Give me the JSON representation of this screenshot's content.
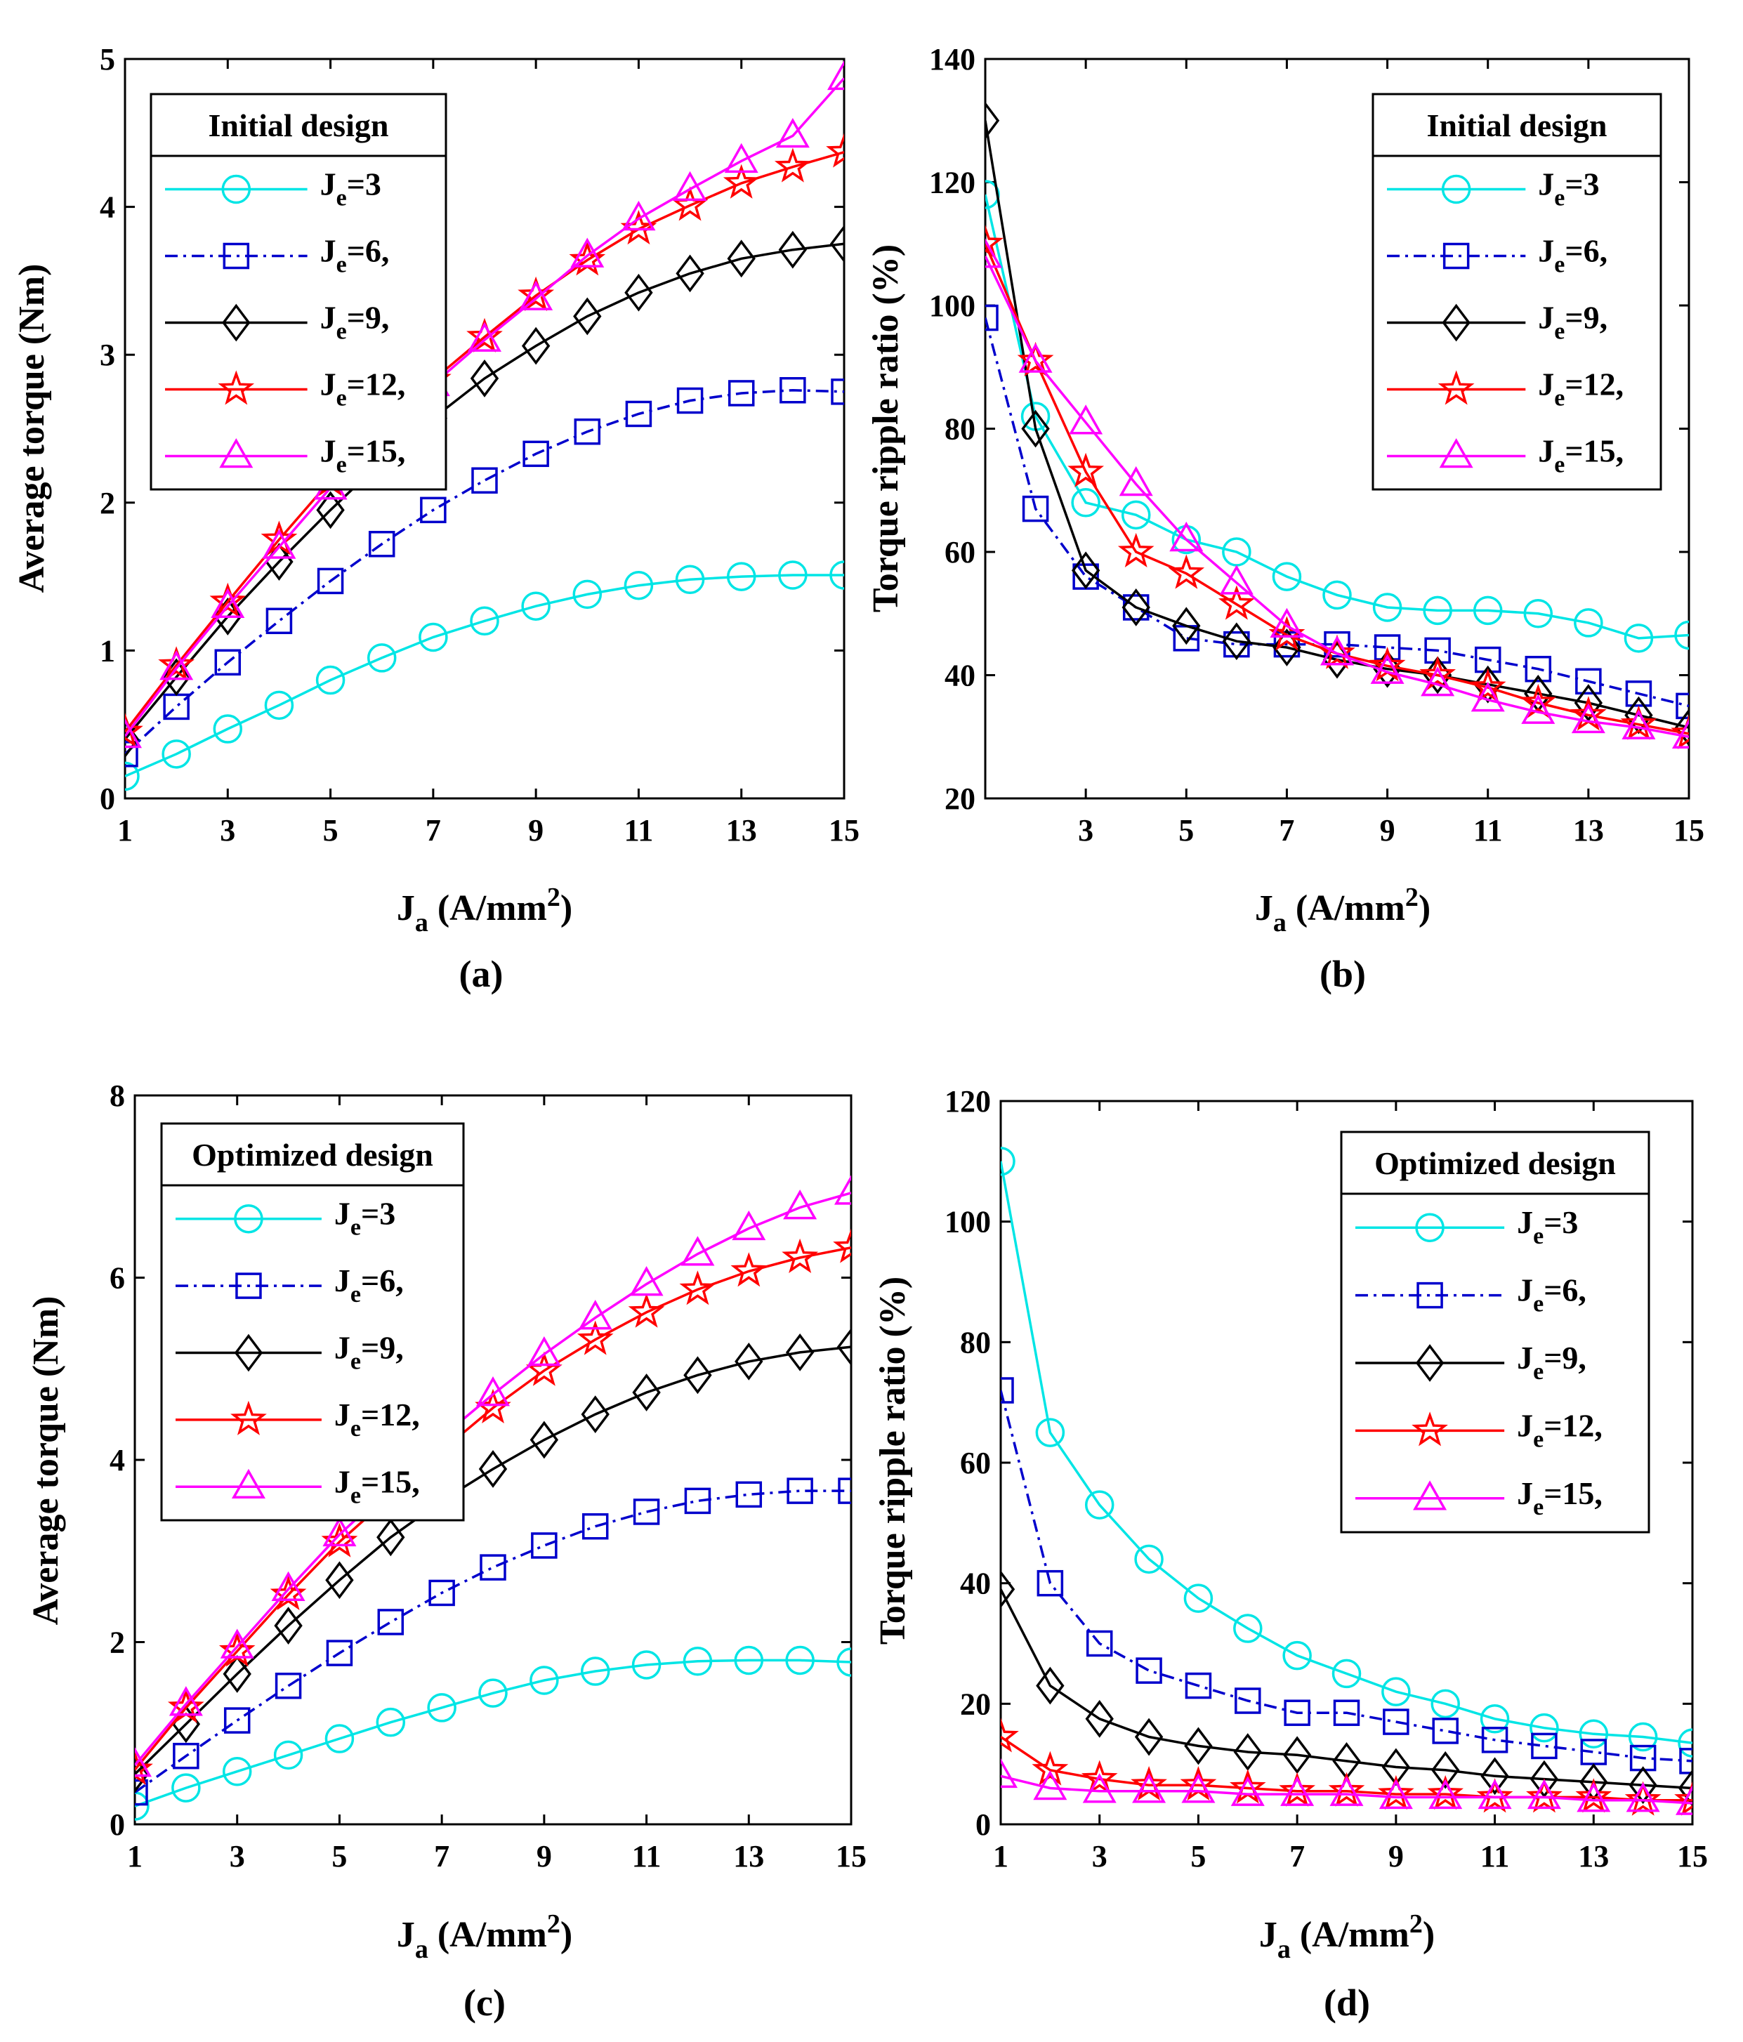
{
  "figure": {
    "panels": [
      {
        "caption": "(a)"
      },
      {
        "caption": "(b)"
      },
      {
        "caption": "(c)"
      },
      {
        "caption": "(d)"
      }
    ]
  },
  "chart_data": [
    {
      "type": "line",
      "caption": "(a)",
      "legend_title": "Initial design",
      "legend_location": "top-left",
      "ylabel": "Average torque (Nm)",
      "xlabel": "Ja (A/mm2)",
      "xlim": [
        1,
        15
      ],
      "ylim": [
        0,
        5
      ],
      "xticks": [
        1,
        3,
        5,
        7,
        9,
        11,
        13,
        15
      ],
      "yticks": [
        0,
        1,
        2,
        3,
        4,
        5
      ],
      "x": [
        1,
        2,
        3,
        4,
        5,
        6,
        7,
        8,
        9,
        10,
        11,
        12,
        13,
        14,
        15
      ],
      "series": [
        {
          "name": "Je=3",
          "color": "#00e5e5",
          "marker": "circle",
          "dash": "solid",
          "values": [
            0.15,
            0.3,
            0.47,
            0.63,
            0.8,
            0.95,
            1.09,
            1.2,
            1.3,
            1.38,
            1.44,
            1.48,
            1.5,
            1.51,
            1.51
          ]
        },
        {
          "name": "Je=6,",
          "color": "#0000cc",
          "marker": "square",
          "dash": "dashdot",
          "values": [
            0.3,
            0.62,
            0.92,
            1.2,
            1.47,
            1.72,
            1.95,
            2.15,
            2.33,
            2.48,
            2.6,
            2.69,
            2.74,
            2.76,
            2.75
          ]
        },
        {
          "name": "Je=9,",
          "color": "#000000",
          "marker": "diamond",
          "dash": "solid",
          "values": [
            0.4,
            0.82,
            1.23,
            1.6,
            1.95,
            2.28,
            2.57,
            2.84,
            3.06,
            3.26,
            3.42,
            3.55,
            3.65,
            3.71,
            3.75
          ]
        },
        {
          "name": "Je=12,",
          "color": "#ff0000",
          "marker": "star",
          "dash": "solid",
          "values": [
            0.45,
            0.9,
            1.33,
            1.75,
            2.15,
            2.52,
            2.83,
            3.12,
            3.4,
            3.64,
            3.85,
            4.01,
            4.16,
            4.27,
            4.37
          ]
        },
        {
          "name": "Je=15,",
          "color": "#ff00ff",
          "marker": "triangle",
          "dash": "solid",
          "values": [
            0.42,
            0.88,
            1.3,
            1.7,
            2.1,
            2.45,
            2.8,
            3.1,
            3.38,
            3.67,
            3.92,
            4.12,
            4.31,
            4.48,
            4.87
          ]
        }
      ]
    },
    {
      "type": "line",
      "caption": "(b)",
      "legend_title": "Initial design",
      "legend_location": "top-right",
      "ylabel": "Torque ripple ratio (%)",
      "xlabel": "Ja (A/mm2)",
      "xlim": [
        1,
        15
      ],
      "ylim": [
        20,
        140
      ],
      "xticks": [
        3,
        5,
        7,
        9,
        11,
        13,
        15
      ],
      "yticks": [
        20,
        40,
        60,
        80,
        100,
        120,
        140
      ],
      "x": [
        1,
        2,
        3,
        4,
        5,
        6,
        7,
        8,
        9,
        10,
        11,
        12,
        13,
        14,
        15
      ],
      "series": [
        {
          "name": "Je=3",
          "color": "#00e5e5",
          "marker": "circle",
          "dash": "solid",
          "values": [
            118,
            82,
            68,
            66,
            62,
            60,
            56,
            53,
            51,
            50.5,
            50.5,
            50,
            48.5,
            46,
            46.5
          ]
        },
        {
          "name": "Je=6,",
          "color": "#0000cc",
          "marker": "square",
          "dash": "dashdot",
          "values": [
            98,
            67,
            56,
            51,
            46,
            45,
            45,
            45,
            44.5,
            44,
            42.5,
            41,
            39,
            37,
            35
          ]
        },
        {
          "name": "Je=9,",
          "color": "#000000",
          "marker": "diamond",
          "dash": "solid",
          "values": [
            130,
            80,
            57,
            51,
            48,
            45.5,
            44.5,
            42.5,
            41,
            40,
            38.5,
            37,
            35.5,
            33.5,
            31.5
          ]
        },
        {
          "name": "Je=12,",
          "color": "#ff0000",
          "marker": "star",
          "dash": "solid",
          "values": [
            110,
            91,
            73,
            60,
            56.5,
            51.5,
            46.5,
            43.5,
            41.5,
            40,
            38,
            35.5,
            33.5,
            32,
            30.5
          ]
        },
        {
          "name": "Je=15,",
          "color": "#ff00ff",
          "marker": "triangle",
          "dash": "solid",
          "values": [
            108,
            91,
            81,
            71,
            62,
            55,
            48,
            43.5,
            40.5,
            38.5,
            36,
            34,
            32.5,
            31.5,
            30
          ]
        }
      ]
    },
    {
      "type": "line",
      "caption": "(c)",
      "legend_title": "Optimized design",
      "legend_location": "top-left",
      "ylabel": "Average torque (Nm)",
      "xlabel": "Ja (A/mm2)",
      "xlim": [
        1,
        15
      ],
      "ylim": [
        0,
        8
      ],
      "xticks": [
        1,
        3,
        5,
        7,
        9,
        11,
        13,
        15
      ],
      "yticks": [
        0,
        2,
        4,
        6,
        8
      ],
      "x": [
        1,
        2,
        3,
        4,
        5,
        6,
        7,
        8,
        9,
        10,
        11,
        12,
        13,
        14,
        15
      ],
      "series": [
        {
          "name": "Je=3",
          "color": "#00e5e5",
          "marker": "circle",
          "dash": "solid",
          "values": [
            0.2,
            0.4,
            0.58,
            0.76,
            0.94,
            1.12,
            1.28,
            1.44,
            1.58,
            1.68,
            1.75,
            1.79,
            1.8,
            1.8,
            1.78
          ]
        },
        {
          "name": "Je=6,",
          "color": "#0000cc",
          "marker": "square",
          "dash": "dashdot",
          "values": [
            0.35,
            0.75,
            1.14,
            1.52,
            1.88,
            2.22,
            2.54,
            2.82,
            3.06,
            3.27,
            3.43,
            3.55,
            3.62,
            3.66,
            3.66
          ]
        },
        {
          "name": "Je=9,",
          "color": "#000000",
          "marker": "diamond",
          "dash": "solid",
          "values": [
            0.55,
            1.1,
            1.65,
            2.18,
            2.68,
            3.15,
            3.55,
            3.9,
            4.22,
            4.5,
            4.74,
            4.93,
            5.08,
            5.18,
            5.24
          ]
        },
        {
          "name": "Je=12,",
          "color": "#ff0000",
          "marker": "star",
          "dash": "solid",
          "values": [
            0.6,
            1.28,
            1.9,
            2.52,
            3.1,
            3.6,
            4.1,
            4.57,
            4.98,
            5.32,
            5.62,
            5.87,
            6.07,
            6.22,
            6.33
          ]
        },
        {
          "name": "Je=15,",
          "color": "#ff00ff",
          "marker": "triangle",
          "dash": "solid",
          "values": [
            0.65,
            1.32,
            1.95,
            2.58,
            3.18,
            3.7,
            4.25,
            4.72,
            5.16,
            5.56,
            5.93,
            6.26,
            6.54,
            6.77,
            6.93
          ]
        }
      ]
    },
    {
      "type": "line",
      "caption": "(d)",
      "legend_title": "Optimized design",
      "legend_location": "top-right",
      "ylabel": "Torque ripple ratio (%)",
      "xlabel": "Ja (A/mm2)",
      "xlim": [
        1,
        15
      ],
      "ylim": [
        0,
        120
      ],
      "xticks": [
        1,
        3,
        5,
        7,
        9,
        11,
        13,
        15
      ],
      "yticks": [
        0,
        20,
        40,
        60,
        80,
        100,
        120
      ],
      "x": [
        1,
        2,
        3,
        4,
        5,
        6,
        7,
        8,
        9,
        10,
        11,
        12,
        13,
        14,
        15
      ],
      "series": [
        {
          "name": "Je=3",
          "color": "#00e5e5",
          "marker": "circle",
          "dash": "solid",
          "values": [
            110,
            65,
            53,
            44,
            37.5,
            32.5,
            28,
            25,
            22,
            20,
            17.5,
            16,
            15,
            14.5,
            13.5
          ]
        },
        {
          "name": "Je=6,",
          "color": "#0000cc",
          "marker": "square",
          "dash": "dashdot",
          "values": [
            72,
            40,
            30,
            25.5,
            23,
            20.5,
            18.5,
            18.5,
            17,
            15.5,
            14,
            13,
            12,
            11,
            10.5
          ]
        },
        {
          "name": "Je=9,",
          "color": "#000000",
          "marker": "diamond",
          "dash": "solid",
          "values": [
            39,
            23,
            17.5,
            14.5,
            13,
            12,
            11.5,
            10.5,
            9.5,
            9,
            8,
            7.5,
            7,
            6.5,
            6
          ]
        },
        {
          "name": "Je=12,",
          "color": "#ff0000",
          "marker": "star",
          "dash": "solid",
          "values": [
            14.5,
            9,
            7.5,
            6.5,
            6.5,
            6,
            5.5,
            5.5,
            5,
            5,
            4.5,
            4.5,
            4.5,
            4,
            4
          ]
        },
        {
          "name": "Je=15,",
          "color": "#ff00ff",
          "marker": "triangle",
          "dash": "solid",
          "values": [
            8,
            6,
            5.5,
            5.5,
            5.5,
            5,
            5,
            5,
            4.5,
            4.5,
            4.5,
            4.5,
            4,
            4,
            3.5
          ]
        }
      ]
    }
  ]
}
